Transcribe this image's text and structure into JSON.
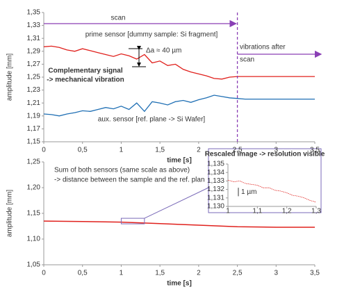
{
  "chart_data": [
    {
      "type": "line",
      "ylabel": "amplitude [mm]",
      "xlabel": "time [s]",
      "grid": false,
      "xlim": [
        0,
        3.5
      ],
      "ylim": [
        1.15,
        1.35
      ],
      "xticks": [
        0,
        {
          "value": 0.5,
          "label": "0,5"
        },
        1,
        {
          "value": 1.5,
          "label": "1,5"
        },
        2,
        {
          "value": 2.5,
          "label": "2,5"
        },
        3,
        {
          "value": 3.5,
          "label": "3,5"
        }
      ],
      "yticks": [
        {
          "value": 1.15,
          "label": "1,15"
        },
        {
          "value": 1.17,
          "label": "1,17"
        },
        {
          "value": 1.19,
          "label": "1,19"
        },
        {
          "value": 1.21,
          "label": "1,21"
        },
        {
          "value": 1.23,
          "label": "1,23"
        },
        {
          "value": 1.25,
          "label": "1,25"
        },
        {
          "value": 1.27,
          "label": "1,27"
        },
        {
          "value": 1.29,
          "label": "1,29"
        },
        {
          "value": 1.31,
          "label": "1,31"
        },
        {
          "value": 1.33,
          "label": "1,33"
        },
        {
          "value": 1.35,
          "label": "1,35"
        }
      ],
      "x": [
        0,
        0.1,
        0.2,
        0.3,
        0.4,
        0.5,
        0.6,
        0.7,
        0.8,
        0.9,
        1,
        1.1,
        1.2,
        1.3,
        1.4,
        1.5,
        1.6,
        1.7,
        1.8,
        1.9,
        2,
        2.1,
        2.2,
        2.3,
        2.4,
        2.5,
        2.6,
        2.7,
        2.8,
        2.9,
        3,
        3.1,
        3.2,
        3.3,
        3.4,
        3.5
      ],
      "series": [
        {
          "name": "prime sensor [dummy sample: Si fragment]",
          "color": "#e0201c",
          "values": [
            1.297,
            1.298,
            1.296,
            1.292,
            1.29,
            1.294,
            1.291,
            1.288,
            1.285,
            1.282,
            1.286,
            1.283,
            1.278,
            1.285,
            1.272,
            1.275,
            1.268,
            1.27,
            1.262,
            1.258,
            1.255,
            1.252,
            1.248,
            1.247,
            1.25,
            1.251,
            1.251,
            1.251,
            1.251,
            1.251,
            1.251,
            1.251,
            1.251,
            1.251,
            1.251,
            1.251
          ]
        },
        {
          "name": "aux. sensor [ref. plane -> Si Wafer]",
          "color": "#1f6fb4",
          "values": [
            1.193,
            1.192,
            1.19,
            1.193,
            1.195,
            1.198,
            1.197,
            1.2,
            1.203,
            1.201,
            1.205,
            1.2,
            1.21,
            1.197,
            1.212,
            1.21,
            1.207,
            1.212,
            1.214,
            1.211,
            1.215,
            1.218,
            1.222,
            1.22,
            1.218,
            1.217,
            1.216,
            1.216,
            1.216,
            1.216,
            1.216,
            1.216,
            1.216,
            1.216,
            1.216,
            1.216
          ]
        }
      ],
      "annotations": [
        {
          "text": "scan",
          "color": "#8a3fb5"
        },
        {
          "text": "vibrations after",
          "color": "#8a3fb5"
        },
        {
          "text": "scan",
          "color": "#8a3fb5"
        },
        {
          "text": "Δa ≈ 40 µm",
          "color": "#000000"
        },
        {
          "text": "Complementary signal",
          "color": "#1a9a3a"
        },
        {
          "text": "-> mechanical vibration",
          "color": "#1a9a3a"
        }
      ],
      "scan_end": 2.5
    },
    {
      "type": "line",
      "ylabel": "amplitude [mm]",
      "xlabel": "time [s]",
      "grid": false,
      "xlim": [
        0,
        3.5
      ],
      "ylim": [
        1.05,
        1.25
      ],
      "xticks": [
        0,
        {
          "value": 0.5,
          "label": "0,5"
        },
        1,
        {
          "value": 1.5,
          "label": "1,5"
        },
        2,
        {
          "value": 2.5,
          "label": "2,5"
        },
        3,
        {
          "value": 3.5,
          "label": "3,5"
        }
      ],
      "yticks": [
        {
          "value": 1.05,
          "label": "1,05"
        },
        {
          "value": 1.1,
          "label": "1,10"
        },
        {
          "value": 1.15,
          "label": "1,15"
        },
        {
          "value": 1.2,
          "label": "1,20"
        },
        {
          "value": 1.25,
          "label": "1,25"
        }
      ],
      "x": [
        0,
        0.5,
        1,
        1.5,
        2,
        2.5,
        3,
        3.5
      ],
      "series": [
        {
          "color": "#e0201c",
          "values": [
            1.135,
            1.134,
            1.133,
            1.13,
            1.127,
            1.124,
            1.123,
            1.123
          ]
        }
      ],
      "annotations": [
        {
          "text": "Sum of both sensors (same scale as above)",
          "color": "#e0201c"
        },
        {
          "text": "-> distance between the sample and the ref. plan",
          "color": "#e0201c"
        }
      ]
    },
    {
      "type": "line",
      "title": "Rescaled image -> resolution visible",
      "grid": false,
      "xlim": [
        1,
        1.3
      ],
      "ylim": [
        1.13,
        1.135
      ],
      "xticks": [
        1,
        {
          "value": 1.1,
          "label": "1,1"
        },
        {
          "value": 1.2,
          "label": "1,2"
        },
        {
          "value": 1.3,
          "label": "1,3"
        }
      ],
      "yticks": [
        {
          "value": 1.13,
          "label": "1,130"
        },
        {
          "value": 1.131,
          "label": "1,131"
        },
        {
          "value": 1.132,
          "label": "1,132"
        },
        {
          "value": 1.133,
          "label": "1,133"
        },
        {
          "value": 1.134,
          "label": "1,134"
        },
        {
          "value": 1.135,
          "label": "1,135"
        }
      ],
      "x": [
        1,
        1.02,
        1.04,
        1.06,
        1.08,
        1.1,
        1.12,
        1.14,
        1.16,
        1.18,
        1.2,
        1.22,
        1.24,
        1.26,
        1.28,
        1.3
      ],
      "series": [
        {
          "color": "#e0201c",
          "values": [
            1.1331,
            1.1329,
            1.133,
            1.1327,
            1.1326,
            1.1325,
            1.1322,
            1.1322,
            1.1319,
            1.1318,
            1.1316,
            1.1313,
            1.1312,
            1.131,
            1.1307,
            1.1305
          ]
        }
      ],
      "annotations": [
        {
          "text": "1 µm",
          "color": "#000000"
        }
      ]
    }
  ]
}
